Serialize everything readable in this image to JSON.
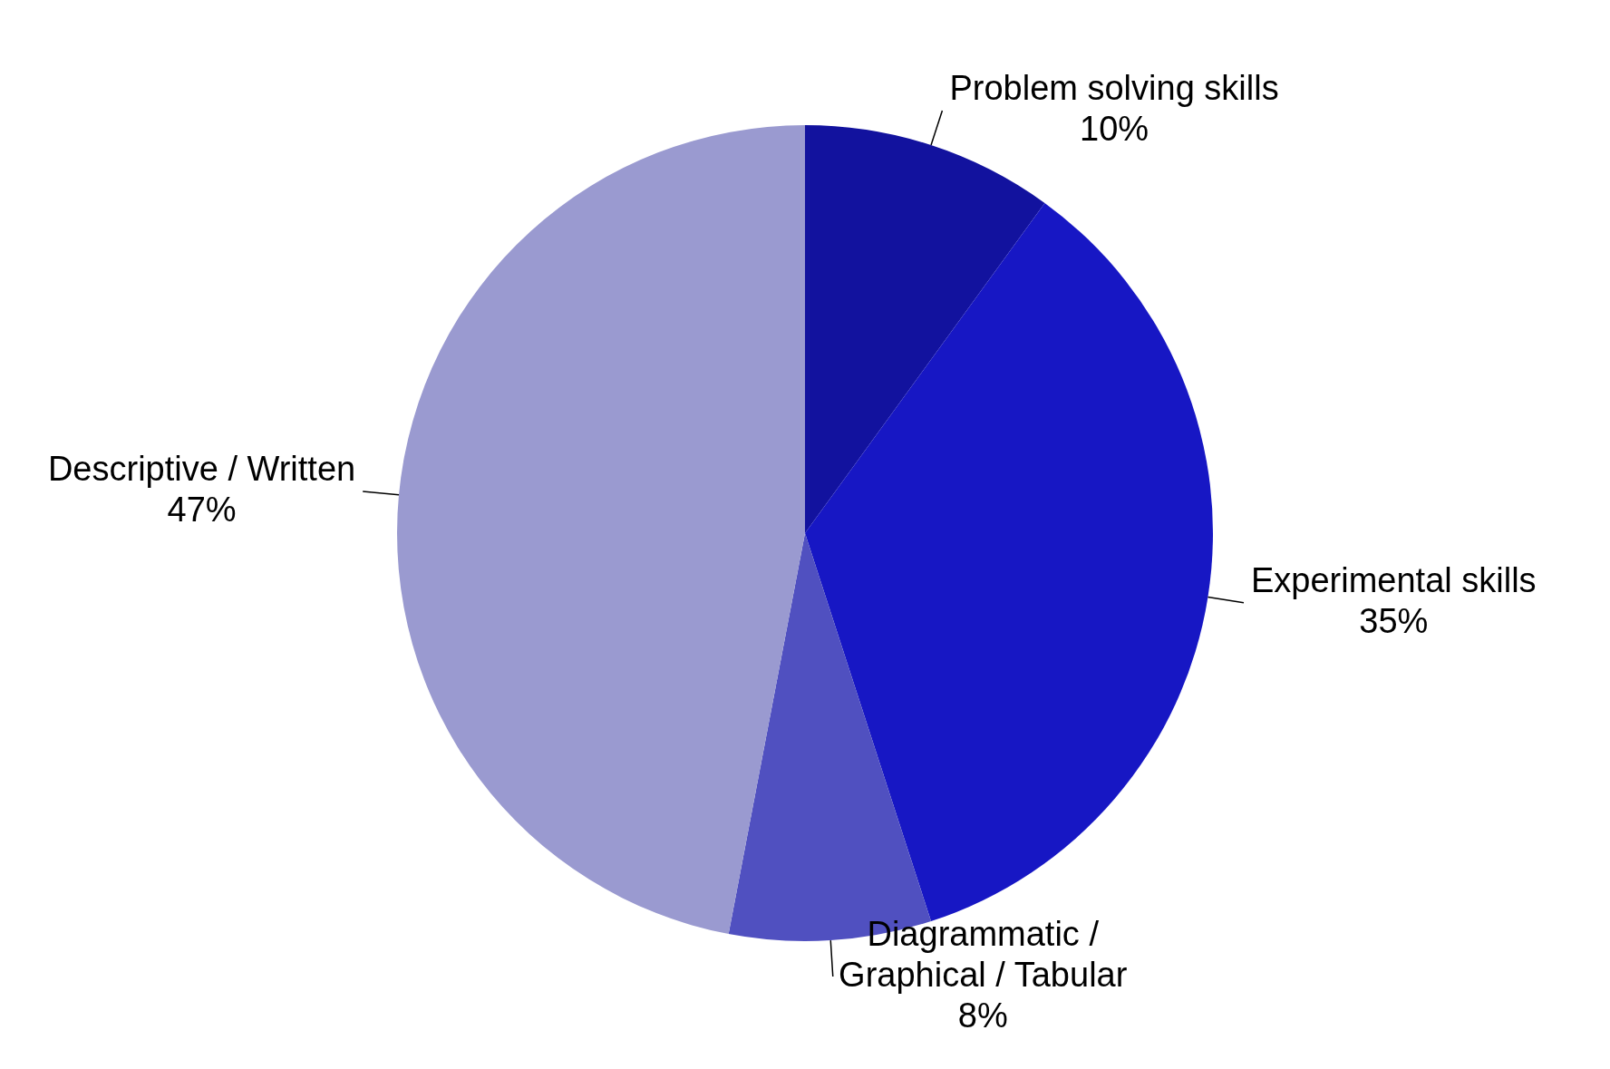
{
  "chart_data": {
    "type": "pie",
    "categories": [
      "Problem solving skills",
      "Experimental skills",
      "Diagrammatic / Graphical / Tabular",
      "Descriptive / Written"
    ],
    "values": [
      10,
      35,
      8,
      47
    ],
    "value_labels": [
      "10%",
      "35%",
      "8%",
      "47%"
    ],
    "colors": [
      "#12129e",
      "#1717c4",
      "#5050c0",
      "#9a9ad0"
    ],
    "legend": false
  }
}
